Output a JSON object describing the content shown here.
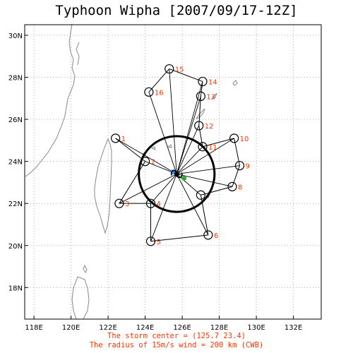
{
  "title": "Typhoon Wipha [2007/09/17-12Z]",
  "map": {
    "lon_range": [
      117.5,
      133.5
    ],
    "lat_range": [
      16.5,
      30.5
    ],
    "lon_ticks": [
      "118E",
      "120E",
      "122E",
      "124E",
      "126E",
      "128E",
      "130E",
      "132E"
    ],
    "lat_ticks": [
      "18N",
      "20N",
      "22N",
      "24N",
      "26N",
      "28N",
      "30N"
    ],
    "grid": "dotted"
  },
  "storm_center": {
    "lon": 125.7,
    "lat": 23.4
  },
  "wind_radius_km": 200,
  "track_points": [
    {
      "label": "1",
      "lon": 122.4,
      "lat": 25.1
    },
    {
      "label": "2",
      "lon": 124.0,
      "lat": 24.0
    },
    {
      "label": "3",
      "lon": 122.6,
      "lat": 22.0
    },
    {
      "label": "4",
      "lon": 124.3,
      "lat": 22.0
    },
    {
      "label": "5",
      "lon": 124.3,
      "lat": 20.2
    },
    {
      "label": "6",
      "lon": 127.4,
      "lat": 20.5
    },
    {
      "label": "7",
      "lon": 127.0,
      "lat": 22.4
    },
    {
      "label": "8",
      "lon": 128.7,
      "lat": 22.8
    },
    {
      "label": "9",
      "lon": 129.1,
      "lat": 23.8
    },
    {
      "label": "10",
      "lon": 128.8,
      "lat": 25.1
    },
    {
      "label": "11",
      "lon": 127.1,
      "lat": 24.7
    },
    {
      "label": "12",
      "lon": 126.9,
      "lat": 25.7
    },
    {
      "label": "13",
      "lon": 127.0,
      "lat": 27.1
    },
    {
      "label": "14",
      "lon": 127.1,
      "lat": 27.8
    },
    {
      "label": "15",
      "lon": 125.3,
      "lat": 28.4
    },
    {
      "label": "16",
      "lon": 124.2,
      "lat": 27.3
    }
  ],
  "extra_markers": [
    {
      "name": "blue",
      "color": "#3399ff",
      "lon": 125.5,
      "lat": 23.5
    },
    {
      "name": "green",
      "color": "#33aa33",
      "lon": 126.1,
      "lat": 23.2
    }
  ],
  "footer_line1": "The storm center = (125.7 23.4)",
  "footer_line2": "The radius of 15m/s wind = 200 km (CWB)",
  "colors": {
    "label": "#ff3300",
    "coast": "#888888",
    "track": "#000000"
  }
}
